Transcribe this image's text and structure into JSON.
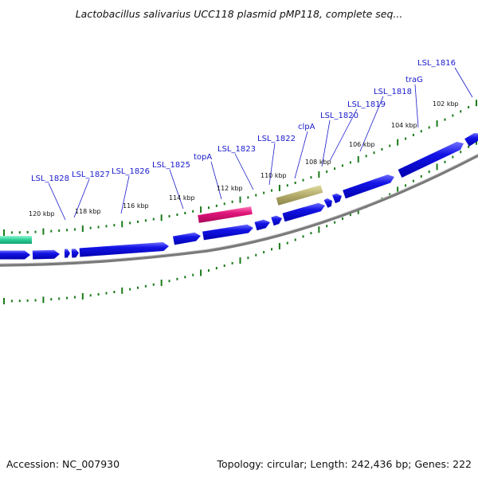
{
  "header": {
    "title": "Lactobacillus salivarius UCC118 plasmid pMP118, complete seq..."
  },
  "footer": {
    "accession": "Accession: NC_007930",
    "topology": "Topology: circular; Length: 242,436 bp; Genes: 222"
  },
  "colors": {
    "gene_fill": "#1010e0",
    "gene_highlight": "#6b6bff",
    "backbone": "#7a7a7a",
    "tick": "#1a7a1a",
    "label": "#1a1acc",
    "topA_fill": "#e0157a",
    "clpA_fill": "#b8b070",
    "green_feature": "#2fd39a"
  },
  "gene_labels": [
    "LSL_1828",
    "LSL_1827",
    "LSL_1826",
    "LSL_1825",
    "topA",
    "LSL_1823",
    "LSL_1822",
    "clpA",
    "LSL_1820",
    "LSL_1819",
    "LSL_1818",
    "traG",
    "LSL_1816"
  ],
  "kbp_labels": [
    "120 kbp",
    "118 kbp",
    "116 kbp",
    "114 kbp",
    "112 kbp",
    "110 kbp",
    "108 kbp",
    "106 kbp",
    "104 kbp",
    "102 kbp"
  ]
}
